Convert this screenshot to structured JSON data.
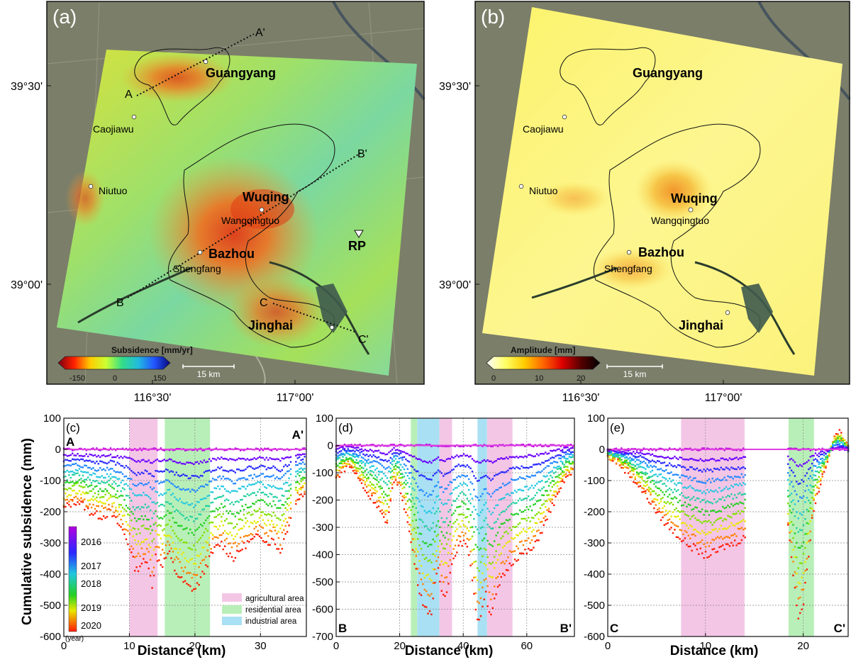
{
  "map_a": {
    "label": "(a)",
    "lat_ticks": [
      "39°30'",
      "39°00'"
    ],
    "lon_ticks": [
      "116°30'",
      "117°00'"
    ],
    "profile_labels": {
      "A": "A",
      "A_end": "A'",
      "B": "B",
      "B_end": "B'",
      "C": "C",
      "C_end": "C'"
    },
    "cities_major": [
      "Guangyang",
      "Wuqing",
      "Bazhou",
      "Jinghai"
    ],
    "cities_minor": [
      "Caojiawu",
      "Niutuo",
      "Wangqingtuo",
      "Shengfang"
    ],
    "reference_point": "RP",
    "colorbar": {
      "title": "Subsidence [mm/yr]",
      "ticks": [
        "-150",
        "0",
        "150"
      ],
      "colors": [
        "#7a0010",
        "#ff2000",
        "#ffcc00",
        "#ccff33",
        "#33dd88",
        "#22bbdd",
        "#2255ff",
        "#08087a"
      ]
    },
    "scalebar": "15 km"
  },
  "map_b": {
    "label": "(b)",
    "lat_ticks": [
      "39°30'",
      "39°00'"
    ],
    "lon_ticks": [
      "116°30'",
      "117°00'"
    ],
    "cities_major": [
      "Guangyang",
      "Wuqing",
      "Bazhou",
      "Jinghai"
    ],
    "cities_minor": [
      "Caojiawu",
      "Niutuo",
      "Wangqingtuo",
      "Shengfang"
    ],
    "colorbar": {
      "title": "Amplitude [mm]",
      "ticks": [
        "0",
        "10",
        "20"
      ],
      "colors": [
        "#ffffff",
        "#ffff66",
        "#ffcc00",
        "#ff6600",
        "#dd0000",
        "#550000",
        "#000000"
      ]
    },
    "scalebar": "15 km"
  },
  "profiles": {
    "y_label": "Cumulative subsidence (mm)",
    "x_label": "Distance (km)",
    "legend": [
      "agricultural area",
      "residential area",
      "industrial area"
    ],
    "year_legend": [
      "2016",
      "2017",
      "2018",
      "2019",
      "2020"
    ],
    "year_unit": "(year)"
  },
  "colors": {
    "agricultural": "#f4c6e6",
    "residential": "#b8efb8",
    "industrial": "#a9e0f3",
    "zero_line": "#e040e0"
  },
  "chart_data": [
    {
      "type": "scatter",
      "panel": "(c)",
      "start_label": "A",
      "end_label": "A'",
      "xlim": [
        0,
        37
      ],
      "ylim": [
        -600,
        100
      ],
      "x_ticks": [
        0,
        10,
        20,
        30
      ],
      "y_ticks": [
        100,
        0,
        -100,
        -200,
        -300,
        -400,
        -500,
        -600
      ],
      "grid": true,
      "bands": [
        {
          "kind": "agricultural",
          "from": 10,
          "to": 14.3
        },
        {
          "kind": "residential",
          "from": 15.4,
          "to": 22.3
        }
      ],
      "profile_2020": [
        [
          0,
          -190
        ],
        [
          1,
          -175
        ],
        [
          2,
          -165
        ],
        [
          3,
          -180
        ],
        [
          4,
          -200
        ],
        [
          5,
          -210
        ],
        [
          6,
          -215
        ],
        [
          7,
          -200
        ],
        [
          8,
          -230
        ],
        [
          9,
          -260
        ],
        [
          10,
          -310
        ],
        [
          11,
          -390
        ],
        [
          12,
          -360
        ],
        [
          13,
          -370
        ],
        [
          13.6,
          -450
        ],
        [
          14,
          -340
        ],
        [
          15,
          -370
        ],
        [
          16,
          -330
        ],
        [
          17,
          -390
        ],
        [
          18,
          -420
        ],
        [
          19,
          -440
        ],
        [
          20,
          -450
        ],
        [
          21,
          -410
        ],
        [
          22,
          -360
        ],
        [
          23,
          -320
        ],
        [
          24,
          -300
        ],
        [
          25,
          -330
        ],
        [
          26,
          -350
        ],
        [
          27,
          -320
        ],
        [
          28,
          -300
        ],
        [
          29,
          -290
        ],
        [
          30,
          -270
        ],
        [
          31,
          -300
        ],
        [
          32,
          -290
        ],
        [
          33,
          -330
        ],
        [
          34,
          -260
        ],
        [
          35,
          -190
        ],
        [
          36,
          -150
        ],
        [
          37,
          -140
        ]
      ],
      "gaps": [
        [
          34.7,
          35.4
        ]
      ]
    },
    {
      "type": "scatter",
      "panel": "(d)",
      "start_label": "B",
      "end_label": "B'",
      "xlim": [
        0,
        75
      ],
      "ylim": [
        -700,
        100
      ],
      "x_ticks": [
        0,
        20,
        40,
        60
      ],
      "y_ticks": [
        100,
        0,
        -100,
        -200,
        -300,
        -400,
        -500,
        -600,
        -700
      ],
      "grid": true,
      "bands": [
        {
          "kind": "residential",
          "from": 23.5,
          "to": 25.5
        },
        {
          "kind": "industrial",
          "from": 25.5,
          "to": 32.5
        },
        {
          "kind": "agricultural",
          "from": 32.5,
          "to": 36.5
        },
        {
          "kind": "industrial",
          "from": 44.5,
          "to": 47.5
        },
        {
          "kind": "agricultural",
          "from": 47.5,
          "to": 55.5
        }
      ],
      "profile_2020": [
        [
          0,
          -120
        ],
        [
          2,
          -90
        ],
        [
          4,
          -70
        ],
        [
          6,
          -100
        ],
        [
          8,
          -140
        ],
        [
          10,
          -180
        ],
        [
          12,
          -200
        ],
        [
          14,
          -240
        ],
        [
          16,
          -300
        ],
        [
          17,
          -220
        ],
        [
          18,
          -120
        ],
        [
          20,
          -150
        ],
        [
          22,
          -250
        ],
        [
          24,
          -380
        ],
        [
          26,
          -520
        ],
        [
          28,
          -600
        ],
        [
          30,
          -610
        ],
        [
          31,
          -520
        ],
        [
          32,
          -450
        ],
        [
          33,
          -520
        ],
        [
          34,
          -560
        ],
        [
          35,
          -520
        ],
        [
          36,
          -450
        ],
        [
          38,
          -380
        ],
        [
          40,
          -350
        ],
        [
          42,
          -400
        ],
        [
          43,
          -500
        ],
        [
          44,
          -610
        ],
        [
          45,
          -650
        ],
        [
          46,
          -590
        ],
        [
          47,
          -530
        ],
        [
          48,
          -600
        ],
        [
          49,
          -620
        ],
        [
          50,
          -560
        ],
        [
          52,
          -490
        ],
        [
          54,
          -450
        ],
        [
          56,
          -420
        ],
        [
          58,
          -400
        ],
        [
          60,
          -390
        ],
        [
          62,
          -380
        ],
        [
          64,
          -330
        ],
        [
          66,
          -280
        ],
        [
          68,
          -220
        ],
        [
          70,
          -180
        ],
        [
          72,
          -120
        ],
        [
          75,
          -90
        ]
      ],
      "gaps": []
    },
    {
      "type": "scatter",
      "panel": "(e)",
      "start_label": "C",
      "end_label": "C'",
      "xlim": [
        0,
        24.6
      ],
      "ylim": [
        -600,
        100
      ],
      "x_ticks": [
        0,
        10,
        20
      ],
      "y_ticks": [
        100,
        0,
        -100,
        -200,
        -300,
        -400,
        -500,
        -600
      ],
      "grid": true,
      "bands": [
        {
          "kind": "agricultural",
          "from": 7.5,
          "to": 14
        },
        {
          "kind": "residential",
          "from": 18.5,
          "to": 21.1
        }
      ],
      "profile_2020": [
        [
          0,
          -20
        ],
        [
          1,
          -40
        ],
        [
          2,
          -70
        ],
        [
          3,
          -110
        ],
        [
          4,
          -150
        ],
        [
          5,
          -200
        ],
        [
          6,
          -240
        ],
        [
          7,
          -270
        ],
        [
          8,
          -300
        ],
        [
          9,
          -320
        ],
        [
          10,
          -340
        ],
        [
          11,
          -330
        ],
        [
          12,
          -310
        ],
        [
          13,
          -300
        ],
        [
          14,
          -280
        ],
        [
          18.5,
          -250
        ],
        [
          19,
          -400
        ],
        [
          19.5,
          -540
        ],
        [
          20,
          -500
        ],
        [
          20.5,
          -350
        ],
        [
          21,
          -200
        ],
        [
          22,
          -80
        ],
        [
          23,
          20
        ],
        [
          23.5,
          60
        ],
        [
          24,
          40
        ],
        [
          24.6,
          0
        ]
      ],
      "gaps": [
        [
          14.2,
          18.4
        ]
      ]
    }
  ]
}
